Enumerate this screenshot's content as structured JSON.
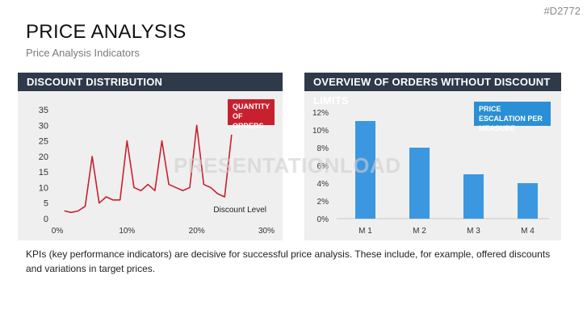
{
  "header": {
    "tag": "#D2772",
    "title": "PRICE ANALYSIS",
    "subtitle": "Price Analysis Indicators"
  },
  "watermark": "PRESENTATIONLOAD",
  "description": "KPIs (key performance indicators) are decisive for successful price analysis. These include, for example, offered discounts and variations in target prices.",
  "colors": {
    "header_bg": "#2e3a49",
    "panel_bg": "#efefef",
    "line": "#c8202f",
    "bar": "#3b97e0"
  },
  "chart_data": [
    {
      "type": "line",
      "title": "DISCOUNT DISTRIBUTION",
      "badge": "QUANTITY OF ORDERS",
      "xlabel": "Discount Level",
      "ylabel": "",
      "x": [
        0.01,
        0.02,
        0.03,
        0.04,
        0.05,
        0.06,
        0.07,
        0.08,
        0.09,
        0.1,
        0.11,
        0.12,
        0.13,
        0.14,
        0.15,
        0.16,
        0.17,
        0.18,
        0.19,
        0.2,
        0.21,
        0.22,
        0.23,
        0.24,
        0.25
      ],
      "y": [
        2.5,
        2,
        2.5,
        4,
        20,
        5,
        7,
        6,
        6,
        25,
        10,
        9,
        11,
        9,
        25,
        11,
        10,
        9,
        10,
        30,
        11,
        10,
        8,
        7,
        27
      ],
      "xlim": [
        0,
        0.3
      ],
      "ylim": [
        0,
        35
      ],
      "x_ticks": [
        "0%",
        "10%",
        "20%",
        "30%"
      ],
      "x_tick_values": [
        0,
        0.1,
        0.2,
        0.3
      ],
      "y_ticks": [
        "0",
        "5",
        "10",
        "15",
        "20",
        "25",
        "30",
        "35"
      ],
      "y_tick_values": [
        0,
        5,
        10,
        15,
        20,
        25,
        30,
        35
      ]
    },
    {
      "type": "bar",
      "title": "OVERVIEW OF ORDERS WITHOUT DISCOUNT LIMITS",
      "badge": "PRICE ESCALATION PER MEASURE",
      "categories": [
        "M 1",
        "M 2",
        "M 3",
        "M 4"
      ],
      "values": [
        0.11,
        0.08,
        0.05,
        0.04
      ],
      "ylim": [
        0,
        0.12
      ],
      "y_ticks": [
        "0%",
        "2%",
        "4%",
        "6%",
        "8%",
        "10%",
        "12%"
      ],
      "y_tick_values": [
        0,
        0.02,
        0.04,
        0.06,
        0.08,
        0.1,
        0.12
      ]
    }
  ]
}
